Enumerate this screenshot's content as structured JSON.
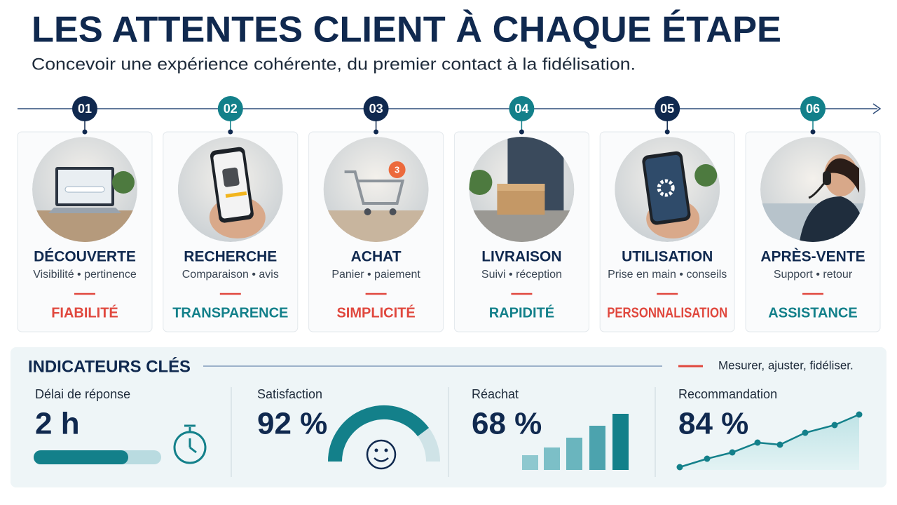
{
  "header": {
    "title": "LES ATTENTES CLIENT À CHAQUE ÉTAPE",
    "subtitle": "Concevoir une expérience cohérente, du premier contact à la fidélisation."
  },
  "steps": [
    {
      "number": "01",
      "title": "DÉCOUVERTE",
      "details": "Visibilité • pertinence",
      "expectation": "FIABILITÉ"
    },
    {
      "number": "02",
      "title": "RECHERCHE",
      "details": "Comparaison • avis",
      "expectation": "TRANSPARENCE"
    },
    {
      "number": "03",
      "title": "ACHAT",
      "details": "Panier • paiement",
      "expectation": "SIMPLICITÉ",
      "badge": "3"
    },
    {
      "number": "04",
      "title": "LIVRAISON",
      "details": "Suivi • réception",
      "expectation": "RAPIDITÉ"
    },
    {
      "number": "05",
      "title": "UTILISATION",
      "details": "Prise en main • conseils",
      "expectation": "PERSONNALISATION"
    },
    {
      "number": "06",
      "title": "APRÈS-VENTE",
      "details": "Support • retour",
      "expectation": "ASSISTANCE"
    }
  ],
  "indicators": {
    "title": "INDICATEURS CLÉS",
    "tagline": "Mesurer, ajuster, fidéliser.",
    "items": [
      {
        "label": "Délai de réponse",
        "value": "2 h"
      },
      {
        "label": "Satisfaction",
        "value": "92 %"
      },
      {
        "label": "Réachat",
        "value": "68 %"
      },
      {
        "label": "Recommandation",
        "value": "84 %"
      }
    ]
  }
}
